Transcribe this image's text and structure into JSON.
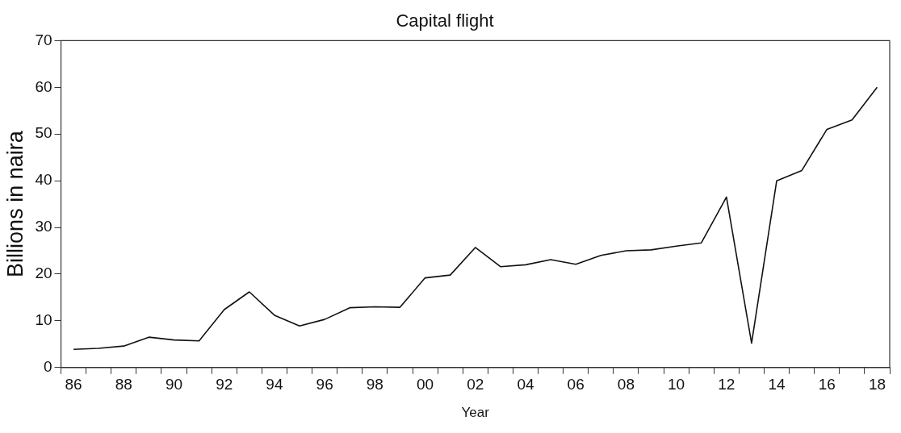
{
  "chart_data": {
    "type": "line",
    "title": "Capital flight",
    "xlabel": "Year",
    "ylabel": "Billions in naira",
    "categories": [
      "86",
      null,
      "88",
      null,
      "90",
      null,
      "92",
      null,
      "94",
      null,
      "96",
      null,
      "98",
      null,
      "00",
      null,
      "02",
      null,
      "04",
      null,
      "06",
      null,
      "08",
      null,
      "10",
      null,
      "12",
      null,
      "14",
      null,
      "16",
      null,
      "18"
    ],
    "series": [
      {
        "color": "#111111",
        "values": [
          3.9,
          4.1,
          4.6,
          6.5,
          5.9,
          5.7,
          12.4,
          16.2,
          11.2,
          8.9,
          10.3,
          12.8,
          13.0,
          12.9,
          19.2,
          19.8,
          25.7,
          21.6,
          22.0,
          23.1,
          22.1,
          24.0,
          25.0,
          25.2,
          26.0,
          26.7,
          36.5,
          5.2,
          40.0,
          42.2,
          51.0,
          53.0,
          60.0
        ]
      }
    ],
    "ylim": [
      0,
      70
    ],
    "yticks": [
      0,
      10,
      20,
      30,
      40,
      50,
      60,
      70
    ],
    "grid": false,
    "legend": false,
    "marker": "none",
    "line_style": "solid"
  }
}
